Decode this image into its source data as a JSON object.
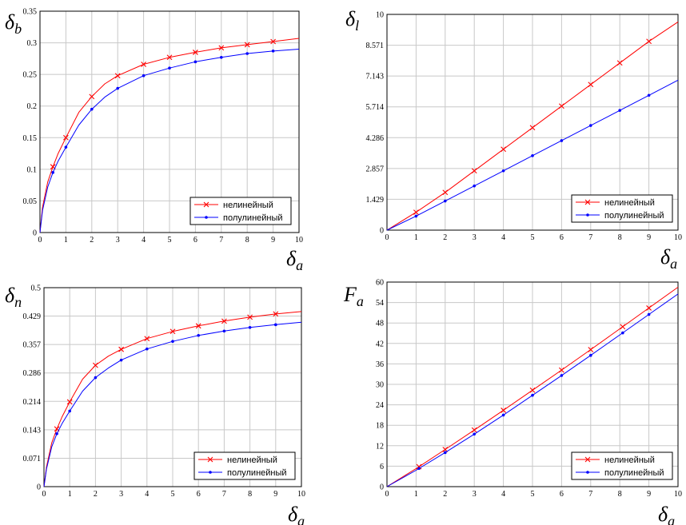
{
  "chart_data": [
    {
      "type": "line",
      "ylabel": {
        "base": "δ",
        "sub": "b"
      },
      "xlabel": {
        "base": "δ",
        "sub": "a"
      },
      "xlim": [
        0,
        10
      ],
      "ylim": [
        0,
        0.35
      ],
      "xticks": [
        0,
        1,
        2,
        3,
        4,
        5,
        6,
        7,
        8,
        9,
        10
      ],
      "yticks": [
        0,
        0.05,
        0.1,
        0.15,
        0.2,
        0.25,
        0.3,
        0.35
      ],
      "ytick_labels": [
        "0",
        "0.05",
        "0.1",
        "0.15",
        "0.2",
        "0.25",
        "0.3",
        "0.35"
      ],
      "grid": true,
      "legend_position": "bottom-right",
      "series": [
        {
          "name": "нелинейный",
          "color": "#ff0000",
          "marker": "x",
          "x": [
            0,
            0.1,
            0.3,
            0.5,
            0.7,
            1,
            1.5,
            2,
            2.5,
            3,
            4,
            5,
            6,
            7,
            8,
            9,
            10
          ],
          "y": [
            0,
            0.04,
            0.08,
            0.104,
            0.125,
            0.15,
            0.19,
            0.215,
            0.235,
            0.248,
            0.266,
            0.277,
            0.285,
            0.292,
            0.297,
            0.302,
            0.307
          ],
          "marker_x": [
            0.5,
            1,
            2,
            3,
            4,
            5,
            6,
            7,
            8,
            9
          ]
        },
        {
          "name": "полулинейный",
          "color": "#0000ff",
          "marker": "dot",
          "x": [
            0,
            0.1,
            0.3,
            0.5,
            0.7,
            1,
            1.5,
            2,
            2.5,
            3,
            4,
            5,
            6,
            7,
            8,
            9,
            10
          ],
          "y": [
            0,
            0.035,
            0.072,
            0.095,
            0.113,
            0.135,
            0.17,
            0.195,
            0.214,
            0.228,
            0.248,
            0.26,
            0.27,
            0.277,
            0.283,
            0.287,
            0.29
          ],
          "marker_x": [
            0.5,
            1,
            2,
            3,
            4,
            5,
            6,
            7,
            8,
            9
          ]
        }
      ]
    },
    {
      "type": "line",
      "ylabel": {
        "base": "δ",
        "sub": "l"
      },
      "xlabel": {
        "base": "δ",
        "sub": "a"
      },
      "xlim": [
        0,
        10
      ],
      "ylim": [
        0,
        10
      ],
      "xticks": [
        0,
        1,
        2,
        3,
        4,
        5,
        6,
        7,
        8,
        9,
        10
      ],
      "yticks": [
        0,
        1.429,
        2.857,
        4.286,
        5.714,
        7.143,
        8.571,
        10
      ],
      "ytick_labels": [
        "0",
        "1.429",
        "2.857",
        "4.286",
        "5.714",
        "7.143",
        "8.571",
        "10"
      ],
      "grid": true,
      "legend_position": "bottom-right",
      "series": [
        {
          "name": "нелинейный",
          "color": "#ff0000",
          "marker": "x",
          "x": [
            0,
            1,
            2,
            3,
            4,
            5,
            6,
            7,
            8,
            9,
            10
          ],
          "y": [
            0,
            0.83,
            1.75,
            2.75,
            3.75,
            4.75,
            5.75,
            6.75,
            7.75,
            8.75,
            9.65
          ],
          "marker_x": [
            1,
            2,
            3,
            4,
            5,
            6,
            7,
            8,
            9
          ]
        },
        {
          "name": "полулинейный",
          "color": "#0000ff",
          "marker": "dot",
          "x": [
            0,
            1,
            2,
            3,
            4,
            5,
            6,
            7,
            8,
            9,
            10
          ],
          "y": [
            0,
            0.65,
            1.35,
            2.05,
            2.75,
            3.45,
            4.15,
            4.85,
            5.55,
            6.25,
            6.95
          ],
          "marker_x": [
            1,
            2,
            3,
            4,
            5,
            6,
            7,
            8,
            9
          ]
        }
      ]
    },
    {
      "type": "line",
      "ylabel": {
        "base": "δ",
        "sub": "n"
      },
      "xlabel": {
        "base": "δ",
        "sub": "a"
      },
      "xlim": [
        0,
        10
      ],
      "ylim": [
        0,
        0.5
      ],
      "xticks": [
        0,
        1,
        2,
        3,
        4,
        5,
        6,
        7,
        8,
        9,
        10
      ],
      "yticks": [
        0,
        0.0714,
        0.1429,
        0.2143,
        0.2857,
        0.3571,
        0.4286,
        0.5
      ],
      "ytick_labels": [
        "0",
        "0.071",
        "0.143",
        "0.214",
        "0.286",
        "0.357",
        "0.429",
        "0.5"
      ],
      "grid": true,
      "legend_position": "bottom-right",
      "series": [
        {
          "name": "нелинейный",
          "color": "#ff0000",
          "marker": "x",
          "x": [
            0,
            0.1,
            0.3,
            0.5,
            0.7,
            1,
            1.5,
            2,
            2.5,
            3,
            4,
            5,
            6,
            7,
            8,
            9,
            10
          ],
          "y": [
            0,
            0.05,
            0.11,
            0.145,
            0.175,
            0.213,
            0.27,
            0.305,
            0.328,
            0.345,
            0.372,
            0.39,
            0.404,
            0.416,
            0.426,
            0.434,
            0.44
          ],
          "marker_x": [
            0.5,
            1,
            2,
            3,
            4,
            5,
            6,
            7,
            8,
            9
          ]
        },
        {
          "name": "полулинейный",
          "color": "#0000ff",
          "marker": "dot",
          "x": [
            0,
            0.1,
            0.3,
            0.5,
            0.7,
            1,
            1.5,
            2,
            2.5,
            3,
            4,
            5,
            6,
            7,
            8,
            9,
            10
          ],
          "y": [
            0,
            0.045,
            0.1,
            0.133,
            0.158,
            0.19,
            0.24,
            0.274,
            0.298,
            0.318,
            0.346,
            0.365,
            0.38,
            0.391,
            0.4,
            0.407,
            0.413
          ],
          "marker_x": [
            0.5,
            1,
            2,
            3,
            4,
            5,
            6,
            7,
            8,
            9
          ]
        }
      ]
    },
    {
      "type": "line",
      "ylabel": {
        "base": "F",
        "sub": "a"
      },
      "xlabel": {
        "base": "δ",
        "sub": "a"
      },
      "xlim": [
        0,
        10
      ],
      "ylim": [
        0,
        60
      ],
      "xticks": [
        0,
        1,
        2,
        3,
        4,
        5,
        6,
        7,
        8,
        9,
        10
      ],
      "yticks": [
        0,
        6,
        12,
        18,
        24,
        30,
        36,
        42,
        48,
        54,
        60
      ],
      "ytick_labels": [
        "0",
        "6",
        "12",
        "18",
        "24",
        "30",
        "36",
        "42",
        "48",
        "54",
        "60"
      ],
      "grid": true,
      "legend_position": "bottom-right",
      "series": [
        {
          "name": "нелинейный",
          "color": "#ff0000",
          "marker": "x",
          "x": [
            0,
            1,
            2,
            3,
            4,
            5,
            6,
            7,
            8,
            9,
            10
          ],
          "y": [
            0,
            5.3,
            10.9,
            16.6,
            22.4,
            28.3,
            34.2,
            40.2,
            46.3,
            52.4,
            58.5
          ],
          "marker_x": [
            1.1,
            2,
            3,
            4,
            5,
            6,
            7,
            8.1,
            9
          ]
        },
        {
          "name": "полулинейный",
          "color": "#0000ff",
          "marker": "dot",
          "x": [
            0,
            1,
            2,
            3,
            4,
            5,
            6,
            7,
            8,
            9,
            10
          ],
          "y": [
            0,
            4.8,
            10.0,
            15.4,
            21.0,
            26.8,
            32.6,
            38.5,
            44.5,
            50.5,
            56.5
          ],
          "marker_x": [
            1.1,
            2,
            3,
            4,
            5,
            6,
            7,
            8.1,
            9
          ]
        }
      ]
    }
  ]
}
